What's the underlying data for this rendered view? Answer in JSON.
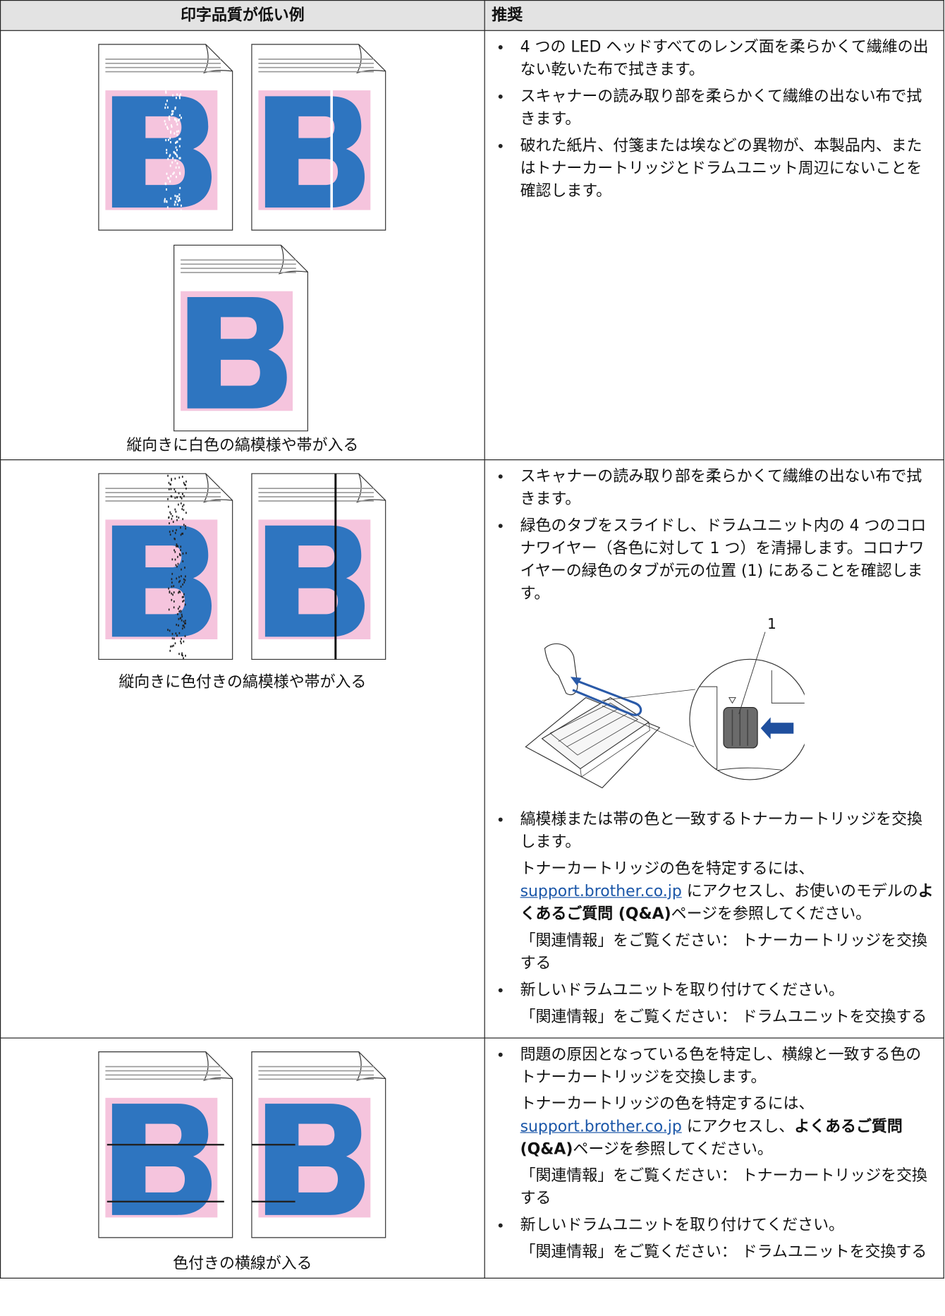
{
  "table": {
    "headers": [
      "印字品質が低い例",
      "推奨"
    ],
    "rows": [
      {
        "caption": "縦向きに白色の縞模様や帯が入る",
        "items": [
          {
            "text": "4 つの LED ヘッドすべてのレンズ面を柔らかくて繊維の出ない乾いた布で拭きます。"
          },
          {
            "text": "スキャナーの読み取り部を柔らかくて繊維の出ない布で拭きます。"
          },
          {
            "text": "破れた紙片、付箋または埃などの異物が、本製品内、またはトナーカートリッジとドラムユニット周辺にないことを確認します。"
          }
        ]
      },
      {
        "caption": "縦向きに色付きの縞模様や帯が入る",
        "items": [
          {
            "text": "スキャナーの読み取り部を柔らかくて繊維の出ない布で拭きます。"
          },
          {
            "text": "緑色のタブをスライドし、ドラムユニット内の 4 つのコロナワイヤー（各色に対して 1 つ）を清掃します。コロナワイヤーの緑色のタブが元の位置 (1) にあることを確認します。",
            "figure_label": "1"
          },
          {
            "text": "縞模様または帯の色と一致するトナーカートリッジを交換します。",
            "notes": [
              [
                {
                  "text": "トナーカートリッジの色を特定するには、"
                },
                {
                  "link": "support.brother.co.jp"
                },
                {
                  "text": " にアクセスし、お使いのモデルの"
                },
                {
                  "bold": "よくあるご質問 (Q&A)"
                },
                {
                  "text": "ページを参照してください。"
                }
              ],
              [
                {
                  "text": "「関連情報」をご覧ください： トナーカートリッジを交換する"
                }
              ]
            ]
          },
          {
            "text": "新しいドラムユニットを取り付けてください。",
            "notes": [
              [
                {
                  "text": "「関連情報」をご覧ください： ドラムユニットを交換する"
                }
              ]
            ]
          }
        ]
      },
      {
        "caption": "色付きの横線が入る",
        "items": [
          {
            "text": "問題の原因となっている色を特定し、横線と一致する色のトナーカートリッジを交換します。",
            "notes": [
              [
                {
                  "text": "トナーカートリッジの色を特定するには、"
                },
                {
                  "link": "support.brother.co.jp"
                },
                {
                  "text": " にアクセスし、"
                },
                {
                  "bold": "よくあるご質問 (Q&A)"
                },
                {
                  "text": "ページを参照してください。"
                }
              ],
              [
                {
                  "text": "「関連情報」をご覧ください： トナーカートリッジを交換する"
                }
              ]
            ]
          },
          {
            "text": "新しいドラムユニットを取り付けてください。",
            "notes": [
              [
                {
                  "text": "「関連情報」をご覧ください： ドラムユニットを交換する"
                }
              ]
            ]
          }
        ]
      }
    ]
  }
}
